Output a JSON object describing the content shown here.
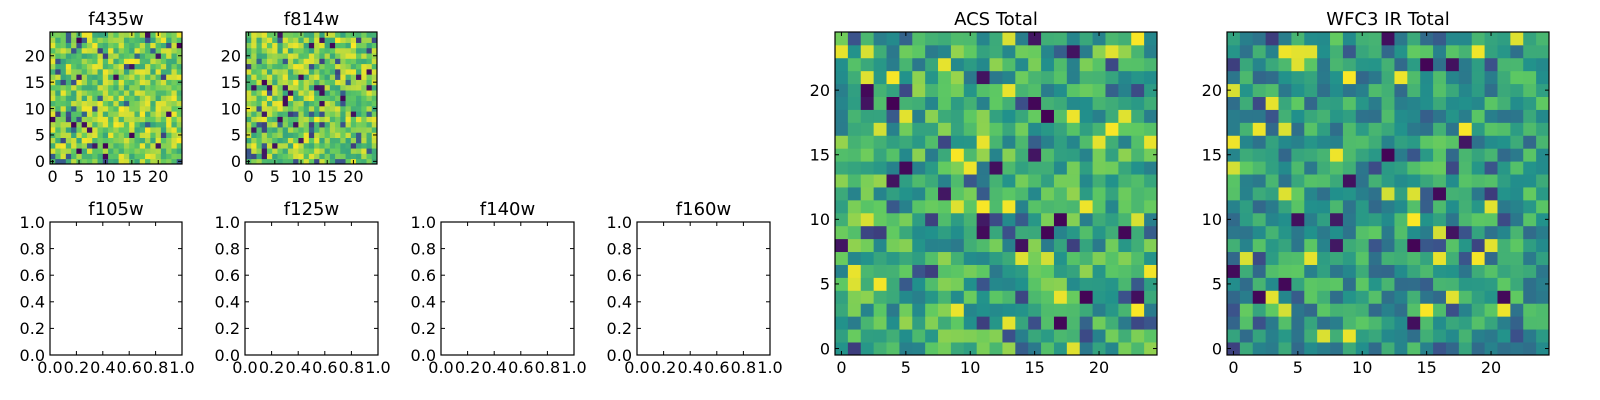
{
  "figure": {
    "colormap": [
      "#440154",
      "#3b528b",
      "#21918c",
      "#5ec962",
      "#fde725"
    ],
    "text_color": "#000000",
    "frame_color": "#000000"
  },
  "chart_data": [
    {
      "type": "heatmap",
      "title": "f435w",
      "grid_size": 25,
      "xlim": [
        -0.5,
        24.5
      ],
      "ylim": [
        -0.5,
        24.5
      ],
      "xticks": [
        "0",
        "5",
        "10",
        "15",
        "20"
      ],
      "yticks": [
        "0",
        "5",
        "10",
        "15",
        "20"
      ],
      "values_note": "",
      "seed": 11,
      "bias": 0.78,
      "spread": 0.2
    },
    {
      "type": "heatmap",
      "title": "f814w",
      "grid_size": 25,
      "xlim": [
        -0.5,
        24.5
      ],
      "ylim": [
        -0.5,
        24.5
      ],
      "xticks": [
        "0",
        "5",
        "10",
        "15",
        "20"
      ],
      "yticks": [
        "0",
        "5",
        "10",
        "15",
        "20"
      ],
      "seed": 23,
      "bias": 0.78,
      "spread": 0.2
    },
    {
      "type": "heatmap",
      "title": "ACS Total",
      "grid_size": 25,
      "xlim": [
        -0.5,
        24.5
      ],
      "ylim": [
        -0.5,
        24.5
      ],
      "xticks": [
        "0",
        "5",
        "10",
        "15",
        "20"
      ],
      "yticks": [
        "0",
        "5",
        "10",
        "15",
        "20"
      ],
      "seed": 37,
      "bias": 0.62,
      "spread": 0.22
    },
    {
      "type": "heatmap",
      "title": "WFC3 IR Total",
      "grid_size": 25,
      "xlim": [
        -0.5,
        24.5
      ],
      "ylim": [
        -0.5,
        24.5
      ],
      "xticks": [
        "0",
        "5",
        "10",
        "15",
        "20"
      ],
      "yticks": [
        "0",
        "5",
        "10",
        "15",
        "20"
      ],
      "seed": 53,
      "bias": 0.55,
      "spread": 0.22
    },
    {
      "type": "line",
      "title": "f105w",
      "series": [],
      "xlim": [
        0.0,
        1.0
      ],
      "ylim": [
        0.0,
        1.0
      ],
      "xticks": [
        "0.0",
        "0.2",
        "0.4",
        "0.6",
        "0.8",
        "1.0"
      ],
      "yticks": [
        "0.0",
        "0.2",
        "0.4",
        "0.6",
        "0.8",
        "1.0"
      ]
    },
    {
      "type": "line",
      "title": "f125w",
      "series": [],
      "xlim": [
        0.0,
        1.0
      ],
      "ylim": [
        0.0,
        1.0
      ],
      "xticks": [
        "0.0",
        "0.2",
        "0.4",
        "0.6",
        "0.8",
        "1.0"
      ],
      "yticks": [
        "0.0",
        "0.2",
        "0.4",
        "0.6",
        "0.8",
        "1.0"
      ]
    },
    {
      "type": "line",
      "title": "f140w",
      "series": [],
      "xlim": [
        0.0,
        1.0
      ],
      "ylim": [
        0.0,
        1.0
      ],
      "xticks": [
        "0.0",
        "0.2",
        "0.4",
        "0.6",
        "0.8",
        "1.0"
      ],
      "yticks": [
        "0.0",
        "0.2",
        "0.4",
        "0.6",
        "0.8",
        "1.0"
      ]
    },
    {
      "type": "line",
      "title": "f160w",
      "series": [],
      "xlim": [
        0.0,
        1.0
      ],
      "ylim": [
        0.0,
        1.0
      ],
      "xticks": [
        "0.0",
        "0.2",
        "0.4",
        "0.6",
        "0.8",
        "1.0"
      ],
      "yticks": [
        "0.0",
        "0.2",
        "0.4",
        "0.6",
        "0.8",
        "1.0"
      ]
    }
  ]
}
